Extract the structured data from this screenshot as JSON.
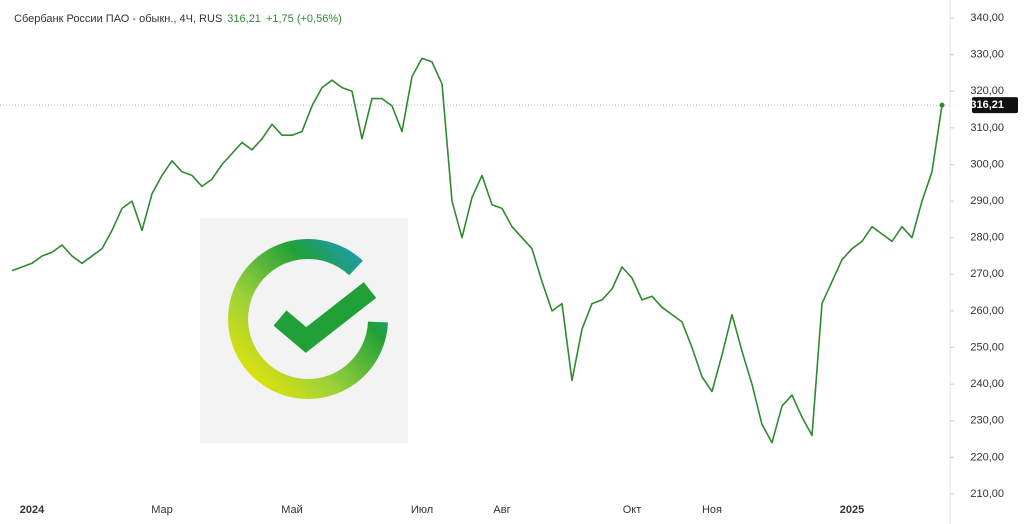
{
  "header": {
    "symbol": "Сбербанк России ПАО - обыкн., 4Ч, RUS",
    "change": "+1,75 (+0,56%)"
  },
  "chart_data": {
    "type": "line",
    "color": "#2f8a2f",
    "categories": [
      null,
      null,
      "2024",
      null,
      null,
      null,
      null,
      null,
      null,
      null,
      null,
      null,
      null,
      null,
      null,
      "Мар",
      null,
      null,
      null,
      null,
      null,
      null,
      null,
      null,
      null,
      null,
      null,
      null,
      "Май",
      null,
      null,
      null,
      null,
      null,
      null,
      null,
      null,
      null,
      null,
      null,
      null,
      "Июл",
      null,
      null,
      null,
      null,
      null,
      null,
      null,
      "Авг",
      null,
      null,
      null,
      null,
      null,
      null,
      null,
      null,
      null,
      null,
      null,
      null,
      "Окт",
      null,
      null,
      null,
      null,
      null,
      null,
      null,
      "Ноя",
      null,
      null,
      null,
      null,
      null,
      null,
      null,
      null,
      null,
      null,
      null,
      null,
      null,
      "2025",
      null,
      null,
      null,
      null,
      null,
      null,
      null,
      null,
      null
    ],
    "values": [
      271,
      272,
      273,
      275,
      276,
      278,
      275,
      273,
      275,
      277,
      282,
      288,
      290,
      282,
      292,
      297,
      301,
      298,
      297,
      294,
      296,
      300,
      303,
      306,
      304,
      307,
      311,
      308,
      308,
      309,
      316,
      321,
      323,
      321,
      320,
      307,
      318,
      318,
      316,
      309,
      324,
      329,
      328,
      322,
      290,
      280,
      291,
      297,
      289,
      288,
      283,
      280,
      277,
      268,
      260,
      262,
      241,
      255,
      262,
      263,
      266,
      272,
      269,
      263,
      264,
      261,
      259,
      257,
      250,
      242,
      238,
      248,
      259,
      249,
      240,
      229,
      224,
      234,
      237,
      231,
      226,
      262,
      268,
      274,
      277,
      279,
      283,
      281,
      279,
      283,
      280,
      290,
      298,
      316.21
    ],
    "last_price": {
      "value": 316.21,
      "label": "316,21"
    },
    "ylim": [
      210,
      340
    ],
    "yticks": [
      {
        "value": 210,
        "label": "210,00"
      },
      {
        "value": 220,
        "label": "220,00"
      },
      {
        "value": 230,
        "label": "230,00"
      },
      {
        "value": 240,
        "label": "240,00"
      },
      {
        "value": 250,
        "label": "250,00"
      },
      {
        "value": 260,
        "label": "260,00"
      },
      {
        "value": 270,
        "label": "270,00"
      },
      {
        "value": 280,
        "label": "280,00"
      },
      {
        "value": 290,
        "label": "290,00"
      },
      {
        "value": 300,
        "label": "300,00"
      },
      {
        "value": 310,
        "label": "310,00"
      },
      {
        "value": 320,
        "label": "320,00"
      },
      {
        "value": 330,
        "label": "330,00"
      },
      {
        "value": 340,
        "label": "340,00"
      }
    ]
  }
}
